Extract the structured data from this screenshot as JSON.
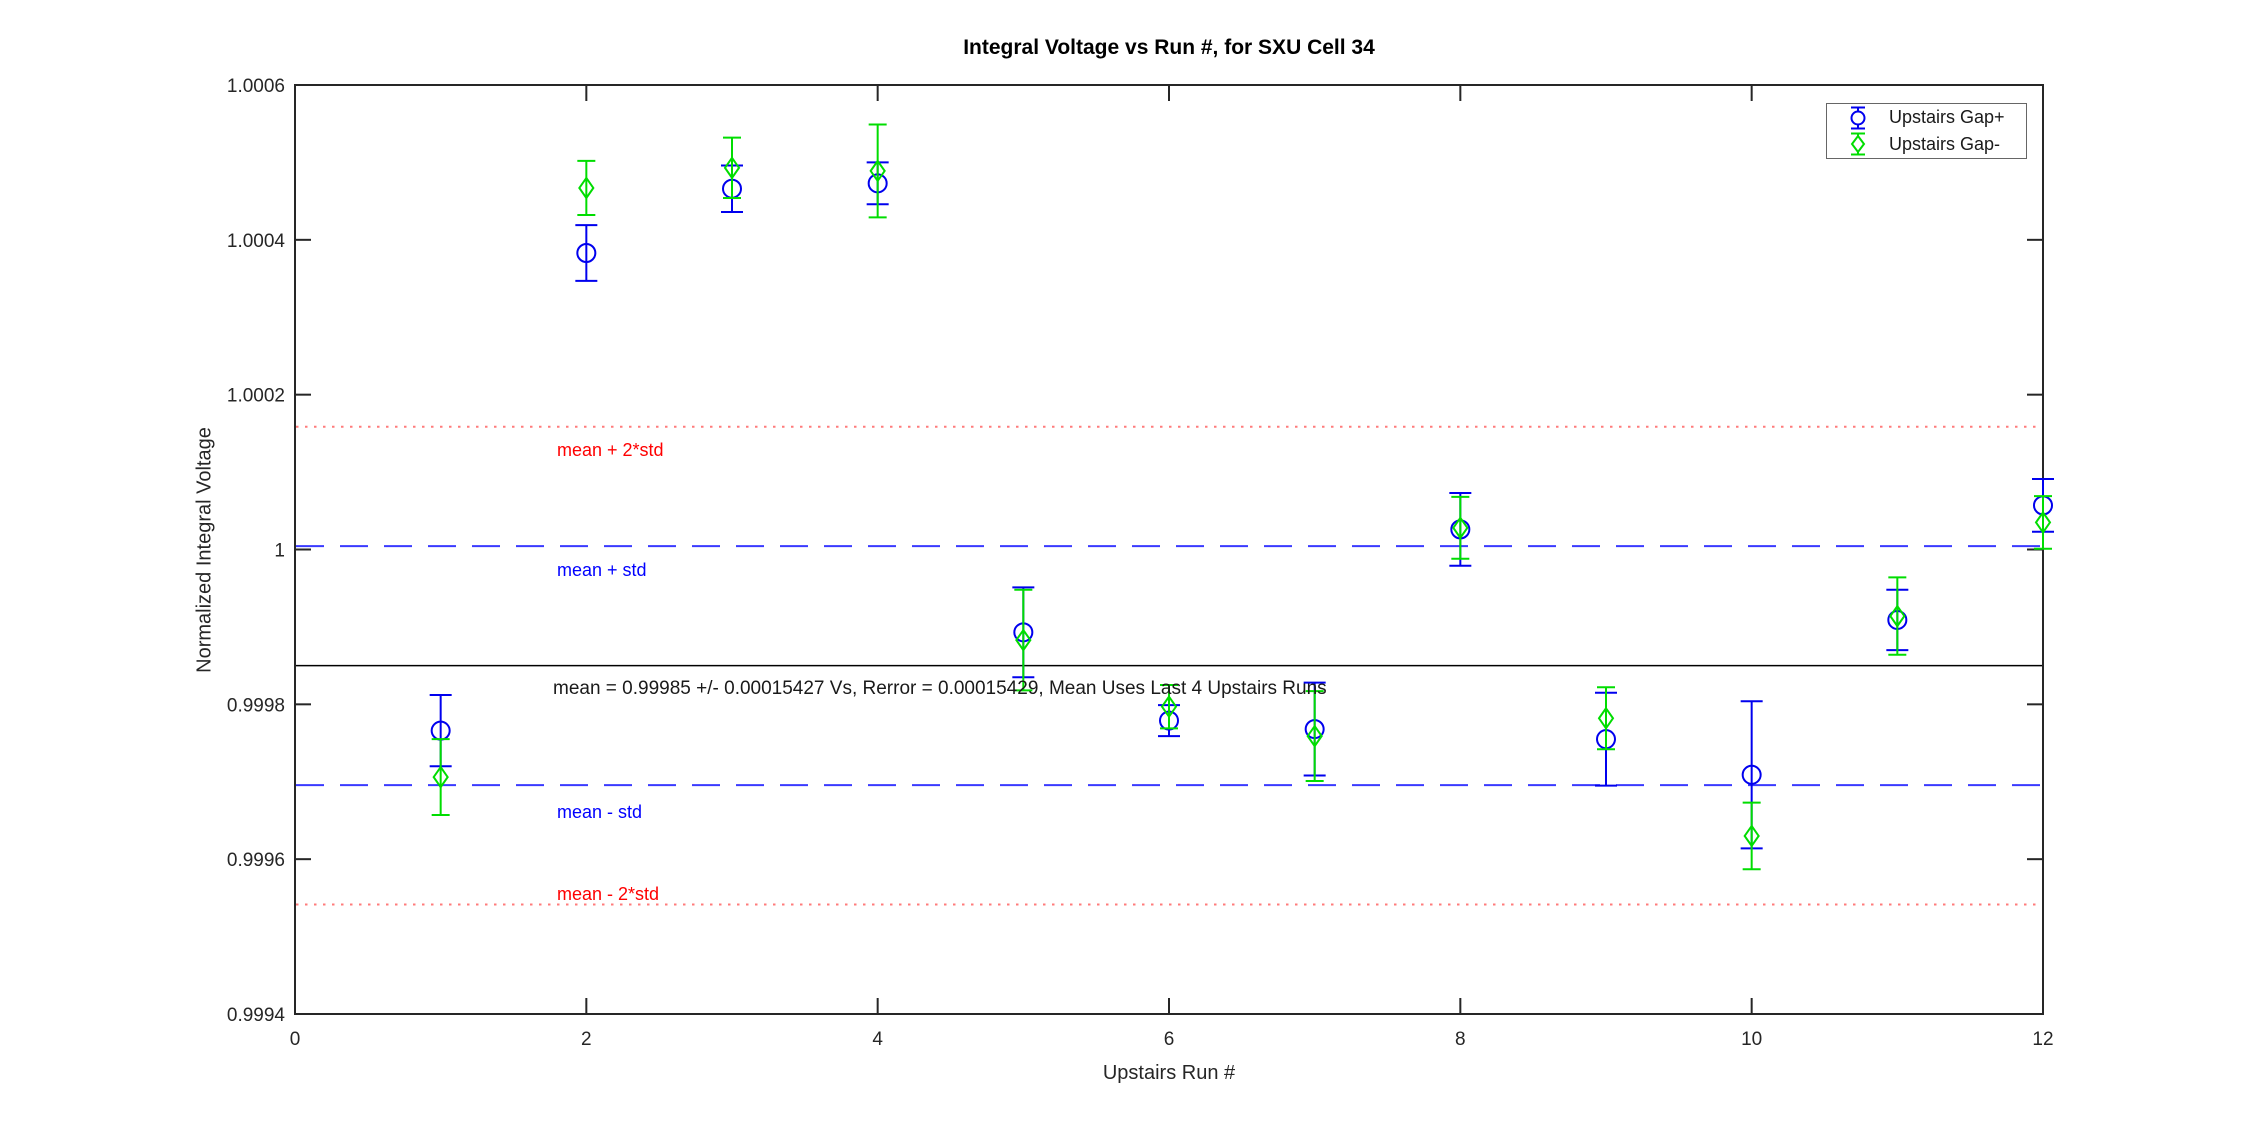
{
  "figure": {
    "background": "#ffffff"
  },
  "chart_data": {
    "type": "scatter",
    "title": "Integral Voltage vs Run #, for SXU Cell 34",
    "xlabel": "Upstairs Run #",
    "ylabel": "Normalized Integral Voltage",
    "xlim": [
      0,
      12
    ],
    "ylim": [
      0.9994,
      1.0006
    ],
    "xticks": [
      0,
      2,
      4,
      6,
      8,
      10,
      12
    ],
    "xtick_labels": [
      "0",
      "2",
      "4",
      "6",
      "8",
      "10",
      "12"
    ],
    "yticks": [
      0.9994,
      0.9996,
      0.9998,
      1.0,
      1.0002,
      1.0004,
      1.0006
    ],
    "ytick_labels": [
      "0.9994",
      "0.9996",
      "0.9998",
      "1",
      "1.0002",
      "1.0004",
      "1.0006"
    ],
    "grid": false,
    "legend_position": "top-right",
    "x": [
      1,
      2,
      3,
      4,
      5,
      6,
      7,
      8,
      9,
      10,
      11,
      12
    ],
    "series": [
      {
        "name": "Upstairs Gap+",
        "marker": "circle",
        "color": "#0000ee",
        "values": [
          0.999766,
          1.000383,
          1.000466,
          1.000473,
          0.999893,
          0.999779,
          0.999768,
          1.000026,
          0.999755,
          0.999709,
          0.999909,
          1.000057
        ],
        "errors": [
          4.6e-05,
          3.6e-05,
          3e-05,
          2.7e-05,
          5.8e-05,
          2e-05,
          6e-05,
          4.7e-05,
          6e-05,
          9.5e-05,
          3.9e-05,
          3.4e-05
        ]
      },
      {
        "name": "Upstairs Gap-",
        "marker": "diamond",
        "color": "#00dd00",
        "values": [
          0.999706,
          1.000467,
          1.000493,
          1.000489,
          0.999883,
          0.999797,
          0.999759,
          1.000028,
          0.999782,
          0.99963,
          0.999914,
          1.000035
        ],
        "errors": [
          4.9e-05,
          3.5e-05,
          3.9e-05,
          6e-05,
          6.5e-05,
          2.8e-05,
          5.8e-05,
          4e-05,
          4e-05,
          4.3e-05,
          5e-05,
          3.4e-05
        ]
      }
    ],
    "statistics": {
      "mean": 0.99985,
      "std": 0.00015427,
      "rerror": 0.00015429
    },
    "reference_lines": [
      {
        "label": "mean + 2*std",
        "value": 1.0001585,
        "style": "dotted",
        "color": "#ff7b7b",
        "label_color": "#ff0000"
      },
      {
        "label": "mean + std",
        "value": 1.0000043,
        "style": "dashed",
        "color": "#3a3aff",
        "label_color": "#0000ff"
      },
      {
        "label": "",
        "value": 0.99985,
        "style": "solid",
        "color": "#000000",
        "label_color": "#000000"
      },
      {
        "label": "mean - std",
        "value": 0.9996957,
        "style": "dashed",
        "color": "#3a3aff",
        "label_color": "#0000ff"
      },
      {
        "label": "mean - 2*std",
        "value": 0.9995415,
        "style": "dotted",
        "color": "#ff7b7b",
        "label_color": "#ff0000"
      }
    ],
    "annotation": "mean = 0.99985 +/- 0.00015427 Vs, Rerror = 0.00015429, Mean Uses Last 4 Upstairs Runs"
  }
}
